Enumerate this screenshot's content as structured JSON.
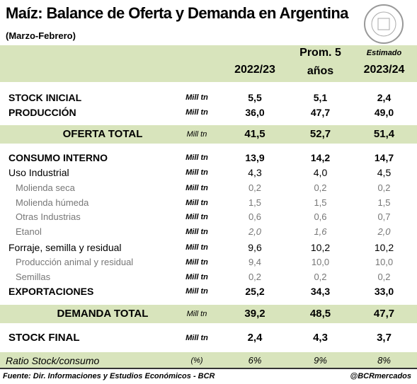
{
  "header": {
    "title": "Maíz: Balance de Oferta y Demanda en Argentina",
    "subtitle": "(Marzo-Febrero)"
  },
  "table": {
    "columns": [
      {
        "main": "2022/23"
      },
      {
        "line1": "Prom. 5",
        "line2": "años"
      },
      {
        "note": "Estimado",
        "main": "2023/24"
      }
    ],
    "rows": [
      [
        "STOCK INICIAL",
        "Mill tn",
        "5,5",
        "5,1",
        "2,4"
      ],
      [
        "PRODUCCIÓN",
        "Mill tn",
        "36,0",
        "47,7",
        "49,0"
      ],
      [
        "OFERTA TOTAL",
        "Mill tn",
        "41,5",
        "52,7",
        "51,4"
      ],
      [
        "CONSUMO INTERNO",
        "Mill tn",
        "13,9",
        "14,2",
        "14,7"
      ],
      [
        "Uso Industrial",
        "Mill tn",
        "4,3",
        "4,0",
        "4,5"
      ],
      [
        "Molienda seca",
        "Mill tn",
        "0,2",
        "0,2",
        "0,2"
      ],
      [
        "Molienda húmeda",
        "Mill tn",
        "1,5",
        "1,5",
        "1,5"
      ],
      [
        "Otras Industrias",
        "Mill tn",
        "0,6",
        "0,6",
        "0,7"
      ],
      [
        "Etanol",
        "Mill tn",
        "2,0",
        "1,6",
        "2,0"
      ],
      [
        "Forraje, semilla y residual",
        "Mill tn",
        "9,6",
        "10,2",
        "10,2"
      ],
      [
        "Producción animal y residual",
        "Mill tn",
        "9,4",
        "10,0",
        "10,0"
      ],
      [
        "Semillas",
        "Mill tn",
        "0,2",
        "0,2",
        "0,2"
      ],
      [
        "EXPORTACIONES",
        "Mill tn",
        "25,2",
        "34,3",
        "33,0"
      ],
      [
        "DEMANDA TOTAL",
        "Mill tn",
        "39,2",
        "48,5",
        "47,7"
      ],
      [
        "STOCK FINAL",
        "Mill tn",
        "2,4",
        "4,3",
        "3,7"
      ],
      [
        "Ratio Stock/consumo",
        "(%)",
        "6%",
        "9%",
        "8%"
      ]
    ]
  },
  "footer": {
    "source": "Fuente: Dir. Informaciones y Estudios Económicos - BCR",
    "handle": "@BCRmercados"
  }
}
